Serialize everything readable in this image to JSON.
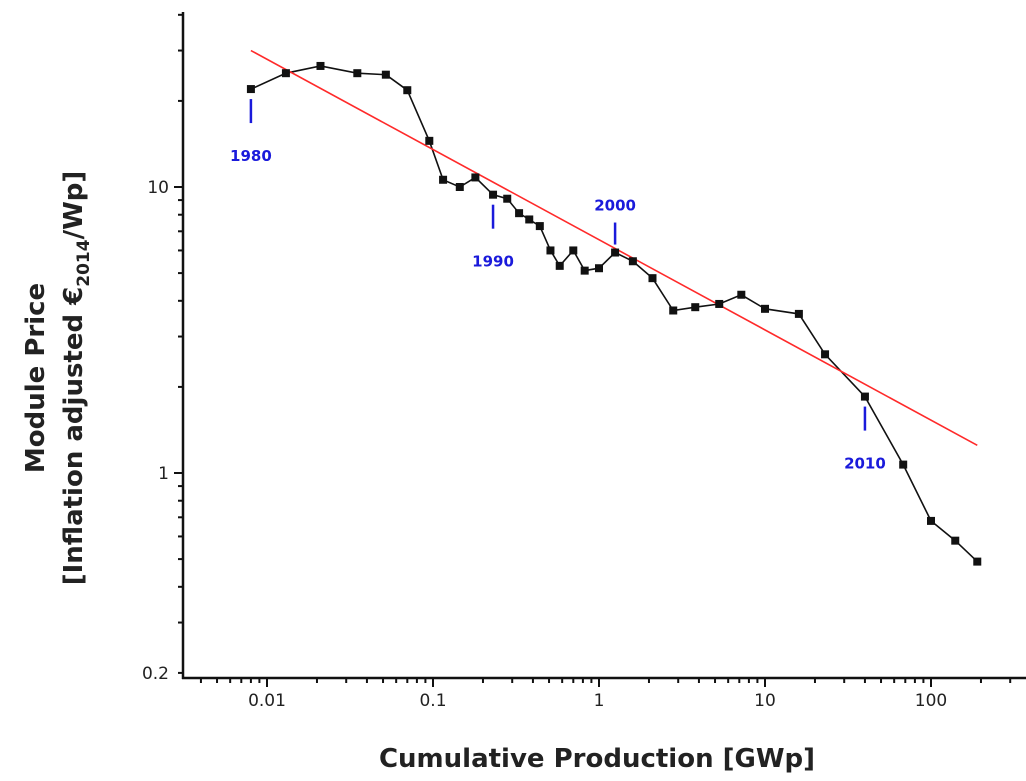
{
  "chart_data": {
    "type": "scatter",
    "title": "",
    "xlabel": "Cumulative Production [GWp]",
    "ylabel": {
      "line1": "Module Price",
      "line2_prefix": "[Inflation adjusted €",
      "line2_subscript": "2014",
      "line2_suffix": "/Wp]"
    },
    "x_scale": "log",
    "y_scale": "log",
    "xlim": [
      0.003,
      400
    ],
    "ylim": [
      0.2,
      50
    ],
    "x_ticks": [
      {
        "value": 0.01,
        "label": "0.01"
      },
      {
        "value": 0.1,
        "label": "0.1"
      },
      {
        "value": 1,
        "label": "1"
      },
      {
        "value": 10,
        "label": "10"
      },
      {
        "value": 100,
        "label": "100"
      }
    ],
    "y_ticks": [
      {
        "value": 0.2,
        "label": "0.2"
      },
      {
        "value": 1,
        "label": "1"
      },
      {
        "value": 10,
        "label": "10"
      }
    ],
    "grid": false,
    "colors": {
      "data": "#111111",
      "trend": "#ff2a2a",
      "annotation": "#1a1adb",
      "axis": "#111111"
    },
    "series": [
      {
        "style": "line-with-square-markers",
        "x": [
          0.008,
          0.013,
          0.021,
          0.035,
          0.052,
          0.07,
          0.095,
          0.115,
          0.145,
          0.18,
          0.23,
          0.28,
          0.33,
          0.38,
          0.44,
          0.51,
          0.58,
          0.7,
          0.82,
          1.0,
          1.25,
          1.6,
          2.1,
          2.8,
          3.8,
          5.3,
          7.2,
          10,
          16,
          23,
          40,
          68,
          100,
          140,
          190
        ],
        "y": [
          22,
          25,
          26.5,
          25,
          24.7,
          21.8,
          14.5,
          10.6,
          10,
          10.8,
          9.4,
          9.1,
          8.1,
          7.7,
          7.3,
          6.0,
          5.3,
          6.0,
          5.1,
          5.2,
          5.9,
          5.5,
          4.8,
          3.7,
          3.8,
          3.9,
          4.2,
          3.75,
          3.6,
          2.6,
          1.85,
          1.07,
          0.68,
          0.58,
          0.49
        ]
      },
      {
        "style": "trend-line",
        "x": [
          0.008,
          190
        ],
        "y": [
          30,
          1.25
        ]
      }
    ],
    "annotations": [
      {
        "label": "1980",
        "x": 0.008,
        "y": 22,
        "position": "below"
      },
      {
        "label": "1990",
        "x": 0.23,
        "y": 9.4,
        "position": "below"
      },
      {
        "label": "2000",
        "x": 1.25,
        "y": 5.9,
        "position": "above"
      },
      {
        "label": "2010",
        "x": 40,
        "y": 1.85,
        "position": "below"
      }
    ]
  }
}
